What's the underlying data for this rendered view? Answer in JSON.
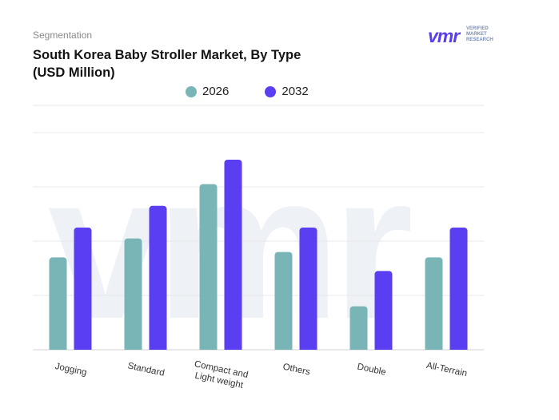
{
  "header": {
    "segment_label": "Segmentation",
    "title": "South Korea Baby Stroller Market, By Type (USD Million)"
  },
  "logo": {
    "mark": "vmr",
    "line1": "VERIFIED",
    "line2": "MARKET",
    "line3": "RESEARCH"
  },
  "colors": {
    "series_2026": "#79b5b6",
    "series_2032": "#5a3ef2",
    "grid": "#e8e8e8",
    "watermark": "#eef1f6"
  },
  "chart_data": {
    "type": "bar",
    "title": "South Korea Baby Stroller Market, By Type (USD Million)",
    "categories": [
      "Jogging",
      "Standard",
      "Compact and Light weight",
      "Others",
      "Double",
      "All-Terrain"
    ],
    "category_lines": [
      [
        "Jogging"
      ],
      [
        "Standard"
      ],
      [
        "Compact and",
        "Light weight"
      ],
      [
        "Others"
      ],
      [
        "Double"
      ],
      [
        "All-Terrain"
      ]
    ],
    "series": [
      {
        "name": "2026",
        "values": [
          34,
          41,
          61,
          36,
          16,
          34
        ]
      },
      {
        "name": "2032",
        "values": [
          45,
          53,
          70,
          45,
          29,
          45
        ]
      }
    ],
    "ylim": [
      0,
      90
    ],
    "grid": true,
    "legend": "top-center",
    "y_axis_labels_shown": false
  }
}
